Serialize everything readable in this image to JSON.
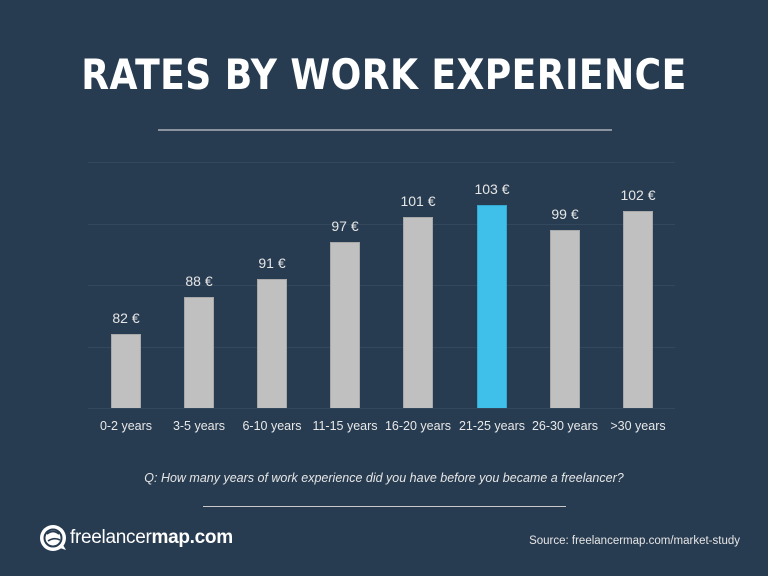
{
  "header": {
    "title": "RATES BY WORK EXPERIENCE"
  },
  "chart_data": {
    "type": "bar",
    "title": "RATES BY WORK EXPERIENCE",
    "categories": [
      "0-2 years",
      "3-5 years",
      "6-10 years",
      "11-15 years",
      "16-20 years",
      "21-25 years",
      "26-30 years",
      ">30 years"
    ],
    "values": [
      82,
      88,
      91,
      97,
      101,
      103,
      99,
      102
    ],
    "value_labels": [
      "82 €",
      "88 €",
      "91 €",
      "97 €",
      "101 €",
      "103 €",
      "99 €",
      "102 €"
    ],
    "unit": "€",
    "highlight_index": 5,
    "xlabel": "",
    "ylabel": "",
    "ylim": [
      70,
      110
    ],
    "grid": true,
    "gridlines": [
      70,
      80,
      90,
      100,
      110
    ],
    "colors": {
      "default_bar": "#c0c0c0",
      "highlight_bar": "#3fc0ea",
      "background": "#283c51"
    },
    "legend": null
  },
  "question": "Q: How many years of work experience did you have before you became a freelancer?",
  "footer": {
    "logo_text_light": "freelancer",
    "logo_text_bold": "map.com",
    "source": "Source: freelancermap.com/market-study"
  }
}
